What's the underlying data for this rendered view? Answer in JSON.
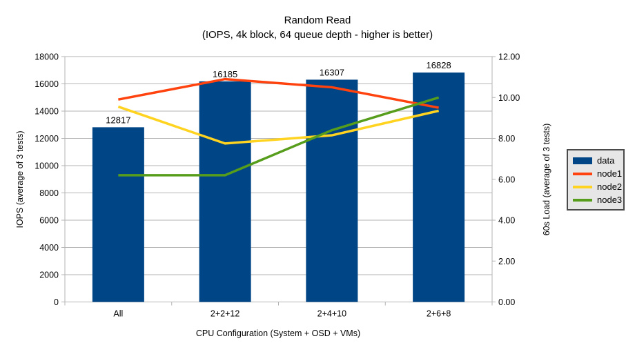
{
  "title": {
    "line1": "Random Read",
    "line2": "(IOPS, 4k block, 64 queue depth - higher is better)"
  },
  "chart_data": {
    "type": "combo-bar-line",
    "categories": [
      "All",
      "2+2+12",
      "2+4+10",
      "2+6+8"
    ],
    "bar_series": {
      "name": "data",
      "color": "#004586",
      "axis": "left",
      "values": [
        12817,
        16185,
        16307,
        16828
      ],
      "labels": [
        "12817",
        "16185",
        "16307",
        "16828"
      ]
    },
    "line_series": [
      {
        "name": "node1",
        "color": "#FF420E",
        "axis": "right",
        "values": [
          9.9,
          10.9,
          10.5,
          9.5
        ]
      },
      {
        "name": "node2",
        "color": "#FFD320",
        "axis": "right",
        "values": [
          9.55,
          7.75,
          8.15,
          9.35
        ]
      },
      {
        "name": "node3",
        "color": "#579D1C",
        "axis": "right",
        "values": [
          6.2,
          6.2,
          8.4,
          10.0
        ]
      }
    ],
    "left_axis": {
      "label": "IOPS (average of 3 tests)",
      "min": 0,
      "max": 18000,
      "step": 2000,
      "ticks": [
        "0",
        "2000",
        "4000",
        "6000",
        "8000",
        "10000",
        "12000",
        "14000",
        "16000",
        "18000"
      ]
    },
    "right_axis": {
      "label": "60s Load (average of 3 tests)",
      "min": 0,
      "max": 12,
      "step": 2,
      "ticks": [
        "0.00",
        "2.00",
        "4.00",
        "6.00",
        "8.00",
        "10.00",
        "12.00"
      ]
    },
    "x_axis": {
      "label": "CPU Configuration (System + OSD + VMs)"
    },
    "legend": [
      {
        "label": "data",
        "color": "#004586",
        "swatch": "bar"
      },
      {
        "label": "node1",
        "color": "#FF420E",
        "swatch": "line"
      },
      {
        "label": "node2",
        "color": "#FFD320",
        "swatch": "line"
      },
      {
        "label": "node3",
        "color": "#579D1C",
        "swatch": "line"
      }
    ],
    "grid": true,
    "legend_position": "right",
    "colors": {
      "grid": "#B3B3B3",
      "axis": "#B3B3B3",
      "text": "#000000",
      "background": "#FFFFFF",
      "legend_bg": "#E6E6E6",
      "legend_border": "#4A4A4A"
    }
  }
}
